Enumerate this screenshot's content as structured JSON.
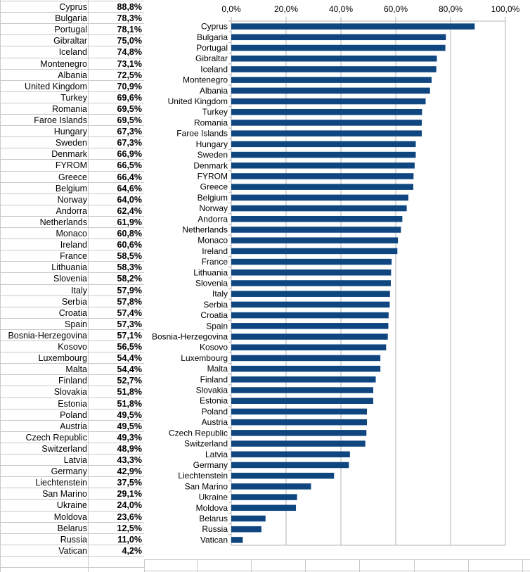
{
  "table": {
    "rows": [
      {
        "country": "Cyprus",
        "value": "88,8%"
      },
      {
        "country": "Bulgaria",
        "value": "78,3%"
      },
      {
        "country": "Portugal",
        "value": "78,1%"
      },
      {
        "country": "Gibraltar",
        "value": "75,0%"
      },
      {
        "country": "Iceland",
        "value": "74,8%"
      },
      {
        "country": "Montenegro",
        "value": "73,1%"
      },
      {
        "country": "Albania",
        "value": "72,5%"
      },
      {
        "country": "United Kingdom",
        "value": "70,9%"
      },
      {
        "country": "Turkey",
        "value": "69,6%"
      },
      {
        "country": "Romania",
        "value": "69,5%"
      },
      {
        "country": "Faroe Islands",
        "value": "69,5%"
      },
      {
        "country": "Hungary",
        "value": "67,3%"
      },
      {
        "country": "Sweden",
        "value": "67,3%"
      },
      {
        "country": "Denmark",
        "value": "66,9%"
      },
      {
        "country": "FYROM",
        "value": "66,5%"
      },
      {
        "country": "Greece",
        "value": "66,4%"
      },
      {
        "country": "Belgium",
        "value": "64,6%"
      },
      {
        "country": "Norway",
        "value": "64,0%"
      },
      {
        "country": "Andorra",
        "value": "62,4%"
      },
      {
        "country": "Netherlands",
        "value": "61,9%"
      },
      {
        "country": "Monaco",
        "value": "60,8%"
      },
      {
        "country": "Ireland",
        "value": "60,6%"
      },
      {
        "country": "France",
        "value": "58,5%"
      },
      {
        "country": "Lithuania",
        "value": "58,3%"
      },
      {
        "country": "Slovenia",
        "value": "58,2%"
      },
      {
        "country": "Italy",
        "value": "57,9%"
      },
      {
        "country": "Serbia",
        "value": "57,8%"
      },
      {
        "country": "Croatia",
        "value": "57,4%"
      },
      {
        "country": "Spain",
        "value": "57,3%"
      },
      {
        "country": "Bosnia-Herzegovina",
        "value": "57,1%"
      },
      {
        "country": "Kosovo",
        "value": "56,5%"
      },
      {
        "country": "Luxembourg",
        "value": "54,4%"
      },
      {
        "country": "Malta",
        "value": "54,4%"
      },
      {
        "country": "Finland",
        "value": "52,7%"
      },
      {
        "country": "Slovakia",
        "value": "51,8%"
      },
      {
        "country": "Estonia",
        "value": "51,8%"
      },
      {
        "country": "Poland",
        "value": "49,5%"
      },
      {
        "country": "Austria",
        "value": "49,5%"
      },
      {
        "country": "Czech Republic",
        "value": "49,3%"
      },
      {
        "country": "Switzerland",
        "value": "48,9%"
      },
      {
        "country": "Latvia",
        "value": "43,3%"
      },
      {
        "country": "Germany",
        "value": "42,9%"
      },
      {
        "country": "Liechtenstein",
        "value": "37,5%"
      },
      {
        "country": "San Marino",
        "value": "29,1%"
      },
      {
        "country": "Ukraine",
        "value": "24,0%"
      },
      {
        "country": "Moldova",
        "value": "23,6%"
      },
      {
        "country": "Belarus",
        "value": "12,5%"
      },
      {
        "country": "Russia",
        "value": "11,0%"
      },
      {
        "country": "Vatican",
        "value": "4,2%"
      }
    ]
  },
  "chart_data": {
    "type": "bar",
    "orientation": "horizontal",
    "bar_color": "#0f4680",
    "xlim": [
      0,
      100
    ],
    "x_ticks": [
      "0,0%",
      "20,0%",
      "40,0%",
      "60,0%",
      "80,0%",
      "100,0%"
    ],
    "x_tick_values": [
      0,
      20,
      40,
      60,
      80,
      100
    ],
    "x_axis_position": "top",
    "grid": true,
    "categories": [
      "Cyprus",
      "Bulgaria",
      "Portugal",
      "Gibraltar",
      "Iceland",
      "Montenegro",
      "Albania",
      "United Kingdom",
      "Turkey",
      "Romania",
      "Faroe Islands",
      "Hungary",
      "Sweden",
      "Denmark",
      "FYROM",
      "Greece",
      "Belgium",
      "Norway",
      "Andorra",
      "Netherlands",
      "Monaco",
      "Ireland",
      "France",
      "Lithuania",
      "Slovenia",
      "Italy",
      "Serbia",
      "Croatia",
      "Spain",
      "Bosnia-Herzegovina",
      "Kosovo",
      "Luxembourg",
      "Malta",
      "Finland",
      "Slovakia",
      "Estonia",
      "Poland",
      "Austria",
      "Czech Republic",
      "Switzerland",
      "Latvia",
      "Germany",
      "Liechtenstein",
      "San Marino",
      "Ukraine",
      "Moldova",
      "Belarus",
      "Russia",
      "Vatican"
    ],
    "values": [
      88.8,
      78.3,
      78.1,
      75.0,
      74.8,
      73.1,
      72.5,
      70.9,
      69.6,
      69.5,
      69.5,
      67.3,
      67.3,
      66.9,
      66.5,
      66.4,
      64.6,
      64.0,
      62.4,
      61.9,
      60.8,
      60.6,
      58.5,
      58.3,
      58.2,
      57.9,
      57.8,
      57.4,
      57.3,
      57.1,
      56.5,
      54.4,
      54.4,
      52.7,
      51.8,
      51.8,
      49.5,
      49.5,
      49.3,
      48.9,
      43.3,
      42.9,
      37.5,
      29.1,
      24.0,
      23.6,
      12.5,
      11.0,
      4.2
    ]
  }
}
